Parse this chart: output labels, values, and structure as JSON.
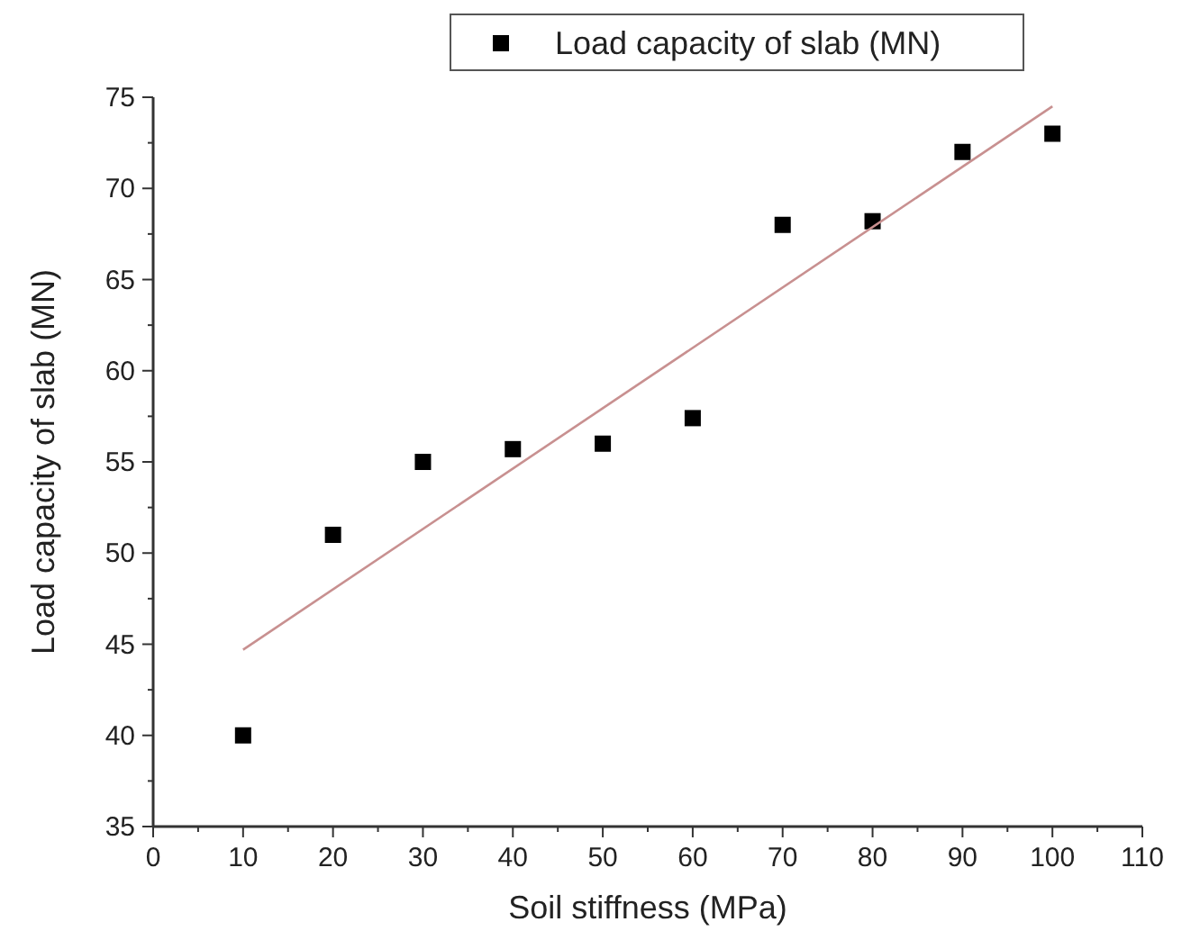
{
  "chart_data": {
    "type": "scatter",
    "xlabel": "Soil stiffness (MPa)",
    "ylabel": "Load capacity of slab (MN)",
    "x": [
      10,
      20,
      30,
      40,
      50,
      60,
      70,
      80,
      90,
      100
    ],
    "series": [
      {
        "name": "Load capacity of slab (MN)",
        "color": "#000000",
        "marker": "square",
        "values": [
          40,
          51,
          55,
          55.7,
          56,
          57.4,
          68,
          68.2,
          72,
          73
        ]
      },
      {
        "type": "line",
        "color": "#c89090",
        "x": [
          10,
          100
        ],
        "values": [
          44.7,
          74.5
        ],
        "marker": "none"
      }
    ],
    "xlim": [
      0,
      110
    ],
    "xticks": [
      0,
      {
        "value": 5,
        "label": null
      },
      10,
      {
        "value": 15,
        "label": null
      },
      20,
      {
        "value": 25,
        "label": null
      },
      30,
      {
        "value": 35,
        "label": null
      },
      40,
      {
        "value": 45,
        "label": null
      },
      50,
      {
        "value": 55,
        "label": null
      },
      60,
      {
        "value": 65,
        "label": null
      },
      70,
      {
        "value": 75,
        "label": null
      },
      80,
      {
        "value": 85,
        "label": null
      },
      90,
      {
        "value": 95,
        "label": null
      },
      100,
      {
        "value": 105,
        "label": null
      },
      110
    ],
    "ylim": [
      35,
      75
    ],
    "yticks": [
      35,
      {
        "value": 37.5,
        "label": null
      },
      40,
      {
        "value": 42.5,
        "label": null
      },
      45,
      {
        "value": 47.5,
        "label": null
      },
      50,
      {
        "value": 52.5,
        "label": null
      },
      55,
      {
        "value": 57.5,
        "label": null
      },
      60,
      {
        "value": 62.5,
        "label": null
      },
      65,
      {
        "value": 67.5,
        "label": null
      },
      70,
      {
        "value": 72.5,
        "label": null
      },
      75
    ],
    "grid": false,
    "legend": "top"
  }
}
